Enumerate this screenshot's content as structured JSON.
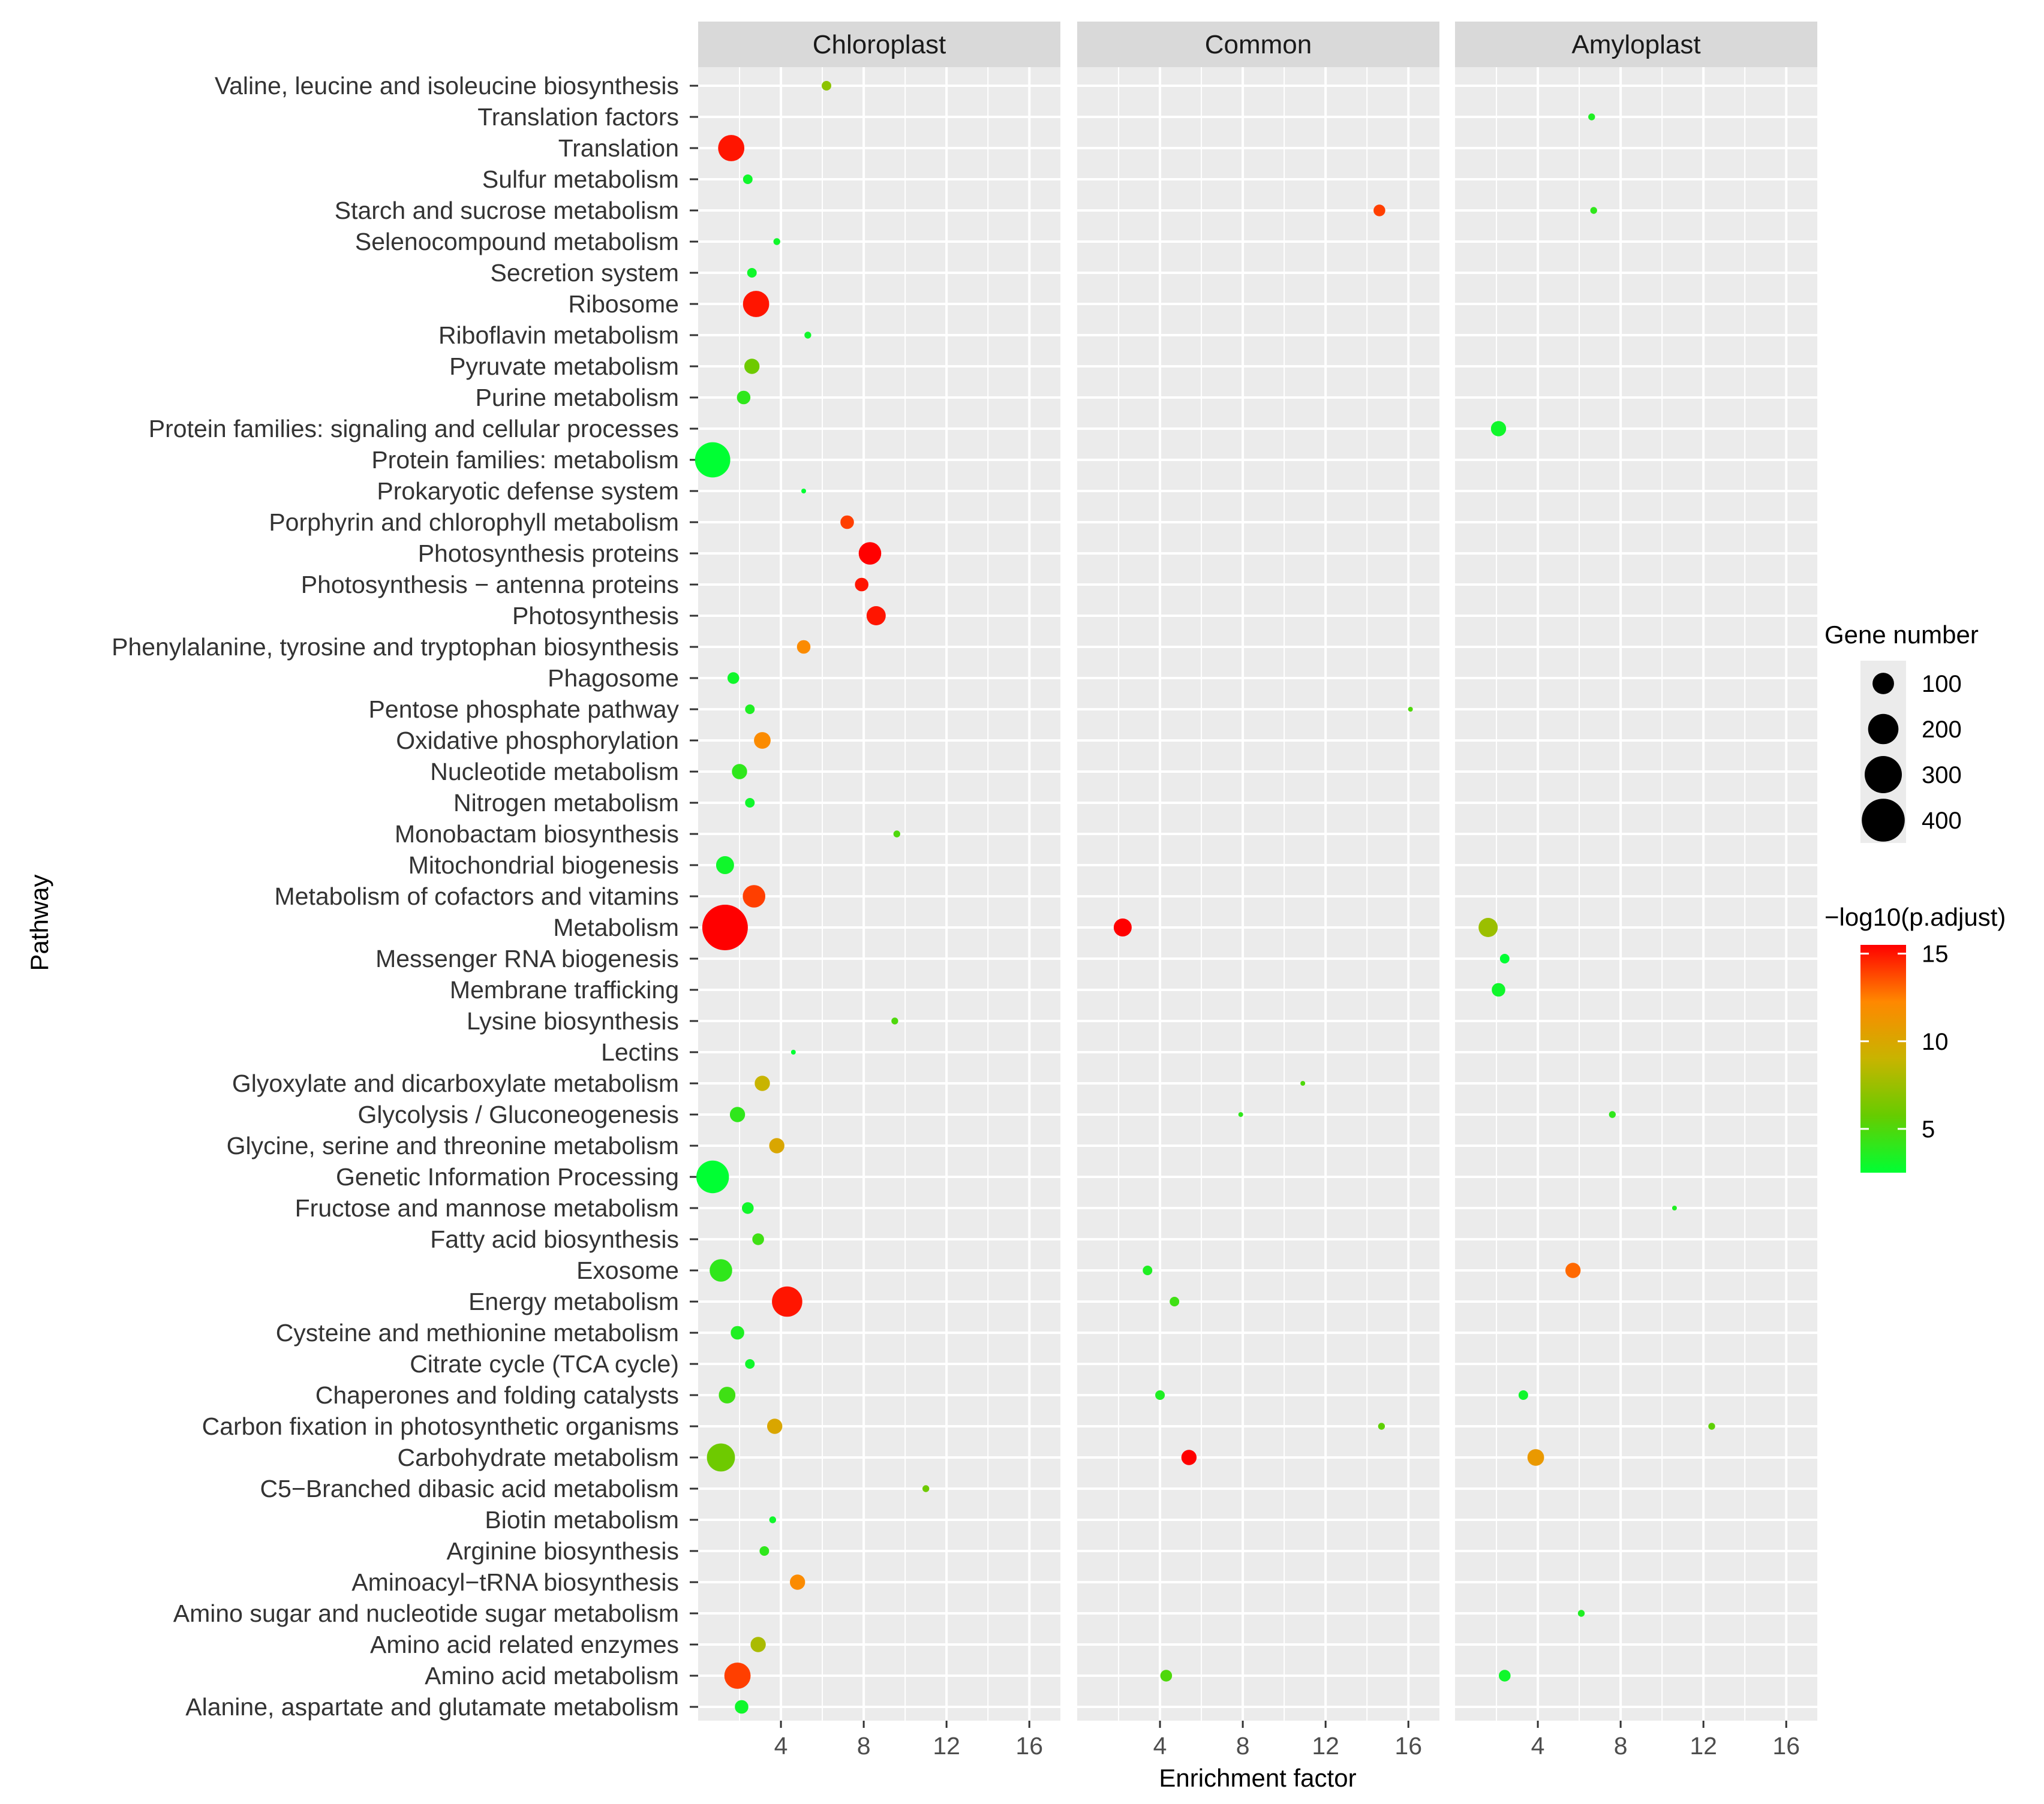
{
  "chart_data": {
    "type": "scatter",
    "xlabel": "Enrichment factor",
    "ylabel": "Pathway",
    "xlim": [
      0,
      17.5
    ],
    "xticks": [
      4,
      8,
      12,
      16
    ],
    "xtick_labels": [
      "4",
      "8",
      "12",
      "16"
    ],
    "panels": [
      "Chloroplast",
      "Common",
      "Amyloplast"
    ],
    "pathways": [
      "Valine, leucine and isoleucine biosynthesis",
      "Translation factors",
      "Translation",
      "Sulfur metabolism",
      "Starch and sucrose metabolism",
      "Selenocompound metabolism",
      "Secretion system",
      "Ribosome",
      "Riboflavin metabolism",
      "Pyruvate metabolism",
      "Purine metabolism",
      "Protein families: signaling and cellular processes",
      "Protein families: metabolism",
      "Prokaryotic defense system",
      "Porphyrin and chlorophyll metabolism",
      "Photosynthesis proteins",
      "Photosynthesis − antenna proteins",
      "Photosynthesis",
      "Phenylalanine, tyrosine and tryptophan biosynthesis",
      "Phagosome",
      "Pentose phosphate pathway",
      "Oxidative phosphorylation",
      "Nucleotide metabolism",
      "Nitrogen metabolism",
      "Monobactam biosynthesis",
      "Mitochondrial biogenesis",
      "Metabolism of cofactors and vitamins",
      "Metabolism",
      "Messenger RNA biogenesis",
      "Membrane trafficking",
      "Lysine biosynthesis",
      "Lectins",
      "Glyoxylate and dicarboxylate metabolism",
      "Glycolysis / Gluconeogenesis",
      "Glycine, serine and threonine metabolism",
      "Genetic Information Processing",
      "Fructose and mannose metabolism",
      "Fatty acid biosynthesis",
      "Exosome",
      "Energy metabolism",
      "Cysteine and methionine metabolism",
      "Citrate cycle (TCA cycle)",
      "Chaperones and folding catalysts",
      "Carbon fixation in photosynthetic organisms",
      "Carbohydrate metabolism",
      "C5−Branched dibasic acid metabolism",
      "Biotin metabolism",
      "Arginine biosynthesis",
      "Aminoacyl−tRNA biosynthesis",
      "Amino sugar and nucleotide sugar metabolism",
      "Amino acid related enzymes",
      "Amino acid metabolism",
      "Alanine, aspartate and glutamate metabolism"
    ],
    "points": [
      {
        "panel": "Chloroplast",
        "pathway": "Valine, leucine and isoleucine biosynthesis",
        "x": 6.2,
        "genes": 20,
        "neglogp": 7
      },
      {
        "panel": "Chloroplast",
        "pathway": "Translation",
        "x": 1.6,
        "genes": 150,
        "neglogp": 15
      },
      {
        "panel": "Chloroplast",
        "pathway": "Sulfur metabolism",
        "x": 2.4,
        "genes": 20,
        "neglogp": 3
      },
      {
        "panel": "Chloroplast",
        "pathway": "Selenocompound metabolism",
        "x": 3.8,
        "genes": 10,
        "neglogp": 3
      },
      {
        "panel": "Chloroplast",
        "pathway": "Secretion system",
        "x": 2.6,
        "genes": 20,
        "neglogp": 3
      },
      {
        "panel": "Chloroplast",
        "pathway": "Ribosome",
        "x": 2.8,
        "genes": 150,
        "neglogp": 15
      },
      {
        "panel": "Chloroplast",
        "pathway": "Riboflavin metabolism",
        "x": 5.3,
        "genes": 10,
        "neglogp": 3
      },
      {
        "panel": "Chloroplast",
        "pathway": "Pyruvate metabolism",
        "x": 2.6,
        "genes": 50,
        "neglogp": 6
      },
      {
        "panel": "Chloroplast",
        "pathway": "Purine metabolism",
        "x": 2.2,
        "genes": 40,
        "neglogp": 4
      },
      {
        "panel": "Chloroplast",
        "pathway": "Protein families: metabolism",
        "x": 0.7,
        "genes": 270,
        "neglogp": 2.5
      },
      {
        "panel": "Chloroplast",
        "pathway": "Prokaryotic defense system",
        "x": 5.1,
        "genes": 5,
        "neglogp": 2.5
      },
      {
        "panel": "Chloroplast",
        "pathway": "Porphyrin and chlorophyll metabolism",
        "x": 7.2,
        "genes": 40,
        "neglogp": 14
      },
      {
        "panel": "Chloroplast",
        "pathway": "Photosynthesis proteins",
        "x": 8.3,
        "genes": 110,
        "neglogp": 15.5
      },
      {
        "panel": "Chloroplast",
        "pathway": "Photosynthesis − antenna proteins",
        "x": 7.9,
        "genes": 40,
        "neglogp": 15
      },
      {
        "panel": "Chloroplast",
        "pathway": "Photosynthesis",
        "x": 8.6,
        "genes": 80,
        "neglogp": 15
      },
      {
        "panel": "Chloroplast",
        "pathway": "Phenylalanine, tyrosine and tryptophan biosynthesis",
        "x": 5.1,
        "genes": 40,
        "neglogp": 12
      },
      {
        "panel": "Chloroplast",
        "pathway": "Phagosome",
        "x": 1.7,
        "genes": 30,
        "neglogp": 3
      },
      {
        "panel": "Chloroplast",
        "pathway": "Pentose phosphate pathway",
        "x": 2.5,
        "genes": 20,
        "neglogp": 3.5
      },
      {
        "panel": "Chloroplast",
        "pathway": "Oxidative phosphorylation",
        "x": 3.1,
        "genes": 60,
        "neglogp": 12
      },
      {
        "panel": "Chloroplast",
        "pathway": "Nucleotide metabolism",
        "x": 2.0,
        "genes": 50,
        "neglogp": 4
      },
      {
        "panel": "Chloroplast",
        "pathway": "Nitrogen metabolism",
        "x": 2.5,
        "genes": 20,
        "neglogp": 3
      },
      {
        "panel": "Chloroplast",
        "pathway": "Monobactam biosynthesis",
        "x": 9.6,
        "genes": 10,
        "neglogp": 5
      },
      {
        "panel": "Chloroplast",
        "pathway": "Mitochondrial biogenesis",
        "x": 1.3,
        "genes": 70,
        "neglogp": 3
      },
      {
        "panel": "Chloroplast",
        "pathway": "Metabolism of cofactors and vitamins",
        "x": 2.7,
        "genes": 110,
        "neglogp": 14
      },
      {
        "panel": "Chloroplast",
        "pathway": "Metabolism",
        "x": 1.3,
        "genes": 450,
        "neglogp": 15.5
      },
      {
        "panel": "Chloroplast",
        "pathway": "Lysine biosynthesis",
        "x": 9.5,
        "genes": 10,
        "neglogp": 5
      },
      {
        "panel": "Chloroplast",
        "pathway": "Lectins",
        "x": 4.6,
        "genes": 5,
        "neglogp": 2.5
      },
      {
        "panel": "Chloroplast",
        "pathway": "Glyoxylate and dicarboxylate metabolism",
        "x": 3.1,
        "genes": 50,
        "neglogp": 9
      },
      {
        "panel": "Chloroplast",
        "pathway": "Glycolysis / Gluconeogenesis",
        "x": 1.9,
        "genes": 50,
        "neglogp": 4
      },
      {
        "panel": "Chloroplast",
        "pathway": "Glycine, serine and threonine metabolism",
        "x": 3.8,
        "genes": 50,
        "neglogp": 10
      },
      {
        "panel": "Chloroplast",
        "pathway": "Genetic Information Processing",
        "x": 0.7,
        "genes": 230,
        "neglogp": 2.5
      },
      {
        "panel": "Chloroplast",
        "pathway": "Fructose and mannose metabolism",
        "x": 2.4,
        "genes": 30,
        "neglogp": 3
      },
      {
        "panel": "Chloroplast",
        "pathway": "Fatty acid biosynthesis",
        "x": 2.9,
        "genes": 30,
        "neglogp": 4.5
      },
      {
        "panel": "Chloroplast",
        "pathway": "Exosome",
        "x": 1.1,
        "genes": 110,
        "neglogp": 4
      },
      {
        "panel": "Chloroplast",
        "pathway": "Energy metabolism",
        "x": 4.3,
        "genes": 200,
        "neglogp": 15
      },
      {
        "panel": "Chloroplast",
        "pathway": "Cysteine and methionine metabolism",
        "x": 1.9,
        "genes": 40,
        "neglogp": 3.5
      },
      {
        "panel": "Chloroplast",
        "pathway": "Citrate cycle (TCA cycle)",
        "x": 2.5,
        "genes": 20,
        "neglogp": 3
      },
      {
        "panel": "Chloroplast",
        "pathway": "Chaperones and folding catalysts",
        "x": 1.4,
        "genes": 60,
        "neglogp": 4.5
      },
      {
        "panel": "Chloroplast",
        "pathway": "Carbon fixation in photosynthetic organisms",
        "x": 3.7,
        "genes": 50,
        "neglogp": 10
      },
      {
        "panel": "Chloroplast",
        "pathway": "Carbohydrate metabolism",
        "x": 1.1,
        "genes": 170,
        "neglogp": 6
      },
      {
        "panel": "Chloroplast",
        "pathway": "C5−Branched dibasic acid metabolism",
        "x": 11.0,
        "genes": 10,
        "neglogp": 6
      },
      {
        "panel": "Chloroplast",
        "pathway": "Biotin metabolism",
        "x": 3.6,
        "genes": 10,
        "neglogp": 3
      },
      {
        "panel": "Chloroplast",
        "pathway": "Arginine biosynthesis",
        "x": 3.2,
        "genes": 20,
        "neglogp": 4
      },
      {
        "panel": "Chloroplast",
        "pathway": "Aminoacyl−tRNA biosynthesis",
        "x": 4.8,
        "genes": 50,
        "neglogp": 12
      },
      {
        "panel": "Chloroplast",
        "pathway": "Amino acid related enzymes",
        "x": 2.9,
        "genes": 50,
        "neglogp": 8
      },
      {
        "panel": "Chloroplast",
        "pathway": "Amino acid metabolism",
        "x": 1.9,
        "genes": 150,
        "neglogp": 14
      },
      {
        "panel": "Chloroplast",
        "pathway": "Alanine, aspartate and glutamate metabolism",
        "x": 2.1,
        "genes": 40,
        "neglogp": 3
      },
      {
        "panel": "Common",
        "pathway": "Starch and sucrose metabolism",
        "x": 14.6,
        "genes": 30,
        "neglogp": 14
      },
      {
        "panel": "Common",
        "pathway": "Pentose phosphate pathway",
        "x": 16.1,
        "genes": 5,
        "neglogp": 5
      },
      {
        "panel": "Common",
        "pathway": "Metabolism",
        "x": 2.2,
        "genes": 70,
        "neglogp": 15.5
      },
      {
        "panel": "Common",
        "pathway": "Glyoxylate and dicarboxylate metabolism",
        "x": 10.9,
        "genes": 5,
        "neglogp": 5
      },
      {
        "panel": "Common",
        "pathway": "Glycolysis / Gluconeogenesis",
        "x": 7.9,
        "genes": 5,
        "neglogp": 4
      },
      {
        "panel": "Common",
        "pathway": "Exosome",
        "x": 3.4,
        "genes": 20,
        "neglogp": 3.5
      },
      {
        "panel": "Common",
        "pathway": "Energy metabolism",
        "x": 4.7,
        "genes": 20,
        "neglogp": 4.5
      },
      {
        "panel": "Common",
        "pathway": "Chaperones and folding catalysts",
        "x": 4.0,
        "genes": 20,
        "neglogp": 3.5
      },
      {
        "panel": "Common",
        "pathway": "Carbon fixation in photosynthetic organisms",
        "x": 14.7,
        "genes": 10,
        "neglogp": 5.5
      },
      {
        "panel": "Common",
        "pathway": "Carbohydrate metabolism",
        "x": 5.4,
        "genes": 50,
        "neglogp": 15.5
      },
      {
        "panel": "Common",
        "pathway": "Amino acid metabolism",
        "x": 4.3,
        "genes": 30,
        "neglogp": 5
      },
      {
        "panel": "Amyloplast",
        "pathway": "Translation factors",
        "x": 6.6,
        "genes": 10,
        "neglogp": 3.5
      },
      {
        "panel": "Amyloplast",
        "pathway": "Starch and sucrose metabolism",
        "x": 6.7,
        "genes": 10,
        "neglogp": 4
      },
      {
        "panel": "Amyloplast",
        "pathway": "Protein families: signaling and cellular processes",
        "x": 2.1,
        "genes": 50,
        "neglogp": 3
      },
      {
        "panel": "Amyloplast",
        "pathway": "Metabolism",
        "x": 1.6,
        "genes": 80,
        "neglogp": 7.5
      },
      {
        "panel": "Amyloplast",
        "pathway": "Messenger RNA biogenesis",
        "x": 2.4,
        "genes": 20,
        "neglogp": 2.5
      },
      {
        "panel": "Amyloplast",
        "pathway": "Membrane trafficking",
        "x": 2.1,
        "genes": 40,
        "neglogp": 3
      },
      {
        "panel": "Amyloplast",
        "pathway": "Glycolysis / Gluconeogenesis",
        "x": 7.6,
        "genes": 10,
        "neglogp": 4
      },
      {
        "panel": "Amyloplast",
        "pathway": "Fructose and mannose metabolism",
        "x": 10.6,
        "genes": 5,
        "neglogp": 3.5
      },
      {
        "panel": "Amyloplast",
        "pathway": "Exosome",
        "x": 5.7,
        "genes": 50,
        "neglogp": 13
      },
      {
        "panel": "Amyloplast",
        "pathway": "Chaperones and folding catalysts",
        "x": 3.3,
        "genes": 20,
        "neglogp": 3
      },
      {
        "panel": "Amyloplast",
        "pathway": "Carbon fixation in photosynthetic organisms",
        "x": 12.4,
        "genes": 10,
        "neglogp": 5.5
      },
      {
        "panel": "Amyloplast",
        "pathway": "Carbohydrate metabolism",
        "x": 3.9,
        "genes": 60,
        "neglogp": 11
      },
      {
        "panel": "Amyloplast",
        "pathway": "Amino sugar and nucleotide sugar metabolism",
        "x": 6.1,
        "genes": 10,
        "neglogp": 3.5
      },
      {
        "panel": "Amyloplast",
        "pathway": "Amino acid metabolism",
        "x": 2.4,
        "genes": 30,
        "neglogp": 3
      }
    ],
    "size_legend": {
      "title": "Gene number",
      "values": [
        100,
        200,
        300,
        400
      ],
      "labels": [
        "100",
        "200",
        "300",
        "400"
      ]
    },
    "color_legend": {
      "title": "−log10(p.adjust)",
      "range": [
        2.5,
        15.5
      ],
      "ticks": [
        5,
        10,
        15
      ],
      "tick_labels": [
        "5",
        "10",
        "15"
      ],
      "colors": [
        "#00ff33",
        "#66cc00",
        "#c8b400",
        "#ff8800",
        "#ff0000"
      ]
    },
    "panel_background": "#ebebeb",
    "strip_background": "#d9d9d9",
    "grid_color": "#ffffff"
  }
}
